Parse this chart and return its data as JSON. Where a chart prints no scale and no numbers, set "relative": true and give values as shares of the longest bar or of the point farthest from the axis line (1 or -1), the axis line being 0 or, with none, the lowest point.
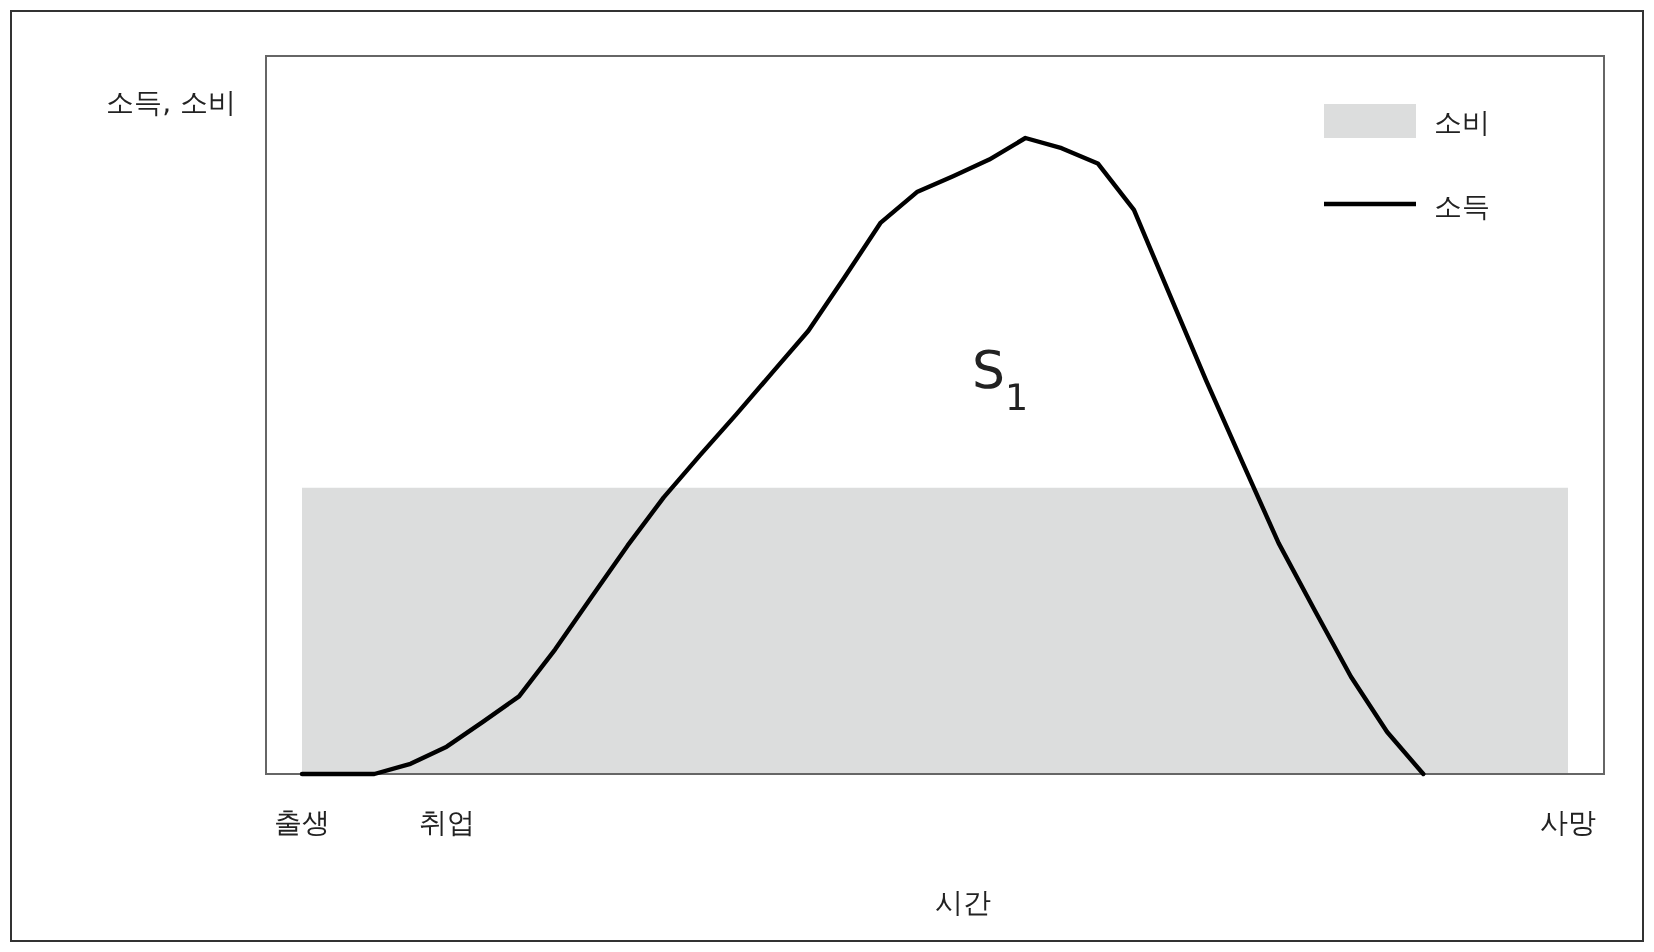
{
  "chart_data": {
    "type": "line",
    "relative": true,
    "xlabel": "시간",
    "ylabel": "소득, 소비",
    "categories": [
      "출생",
      null,
      null,
      null,
      "취업",
      null,
      null,
      null,
      null,
      null,
      null,
      null,
      null,
      null,
      null,
      null,
      null,
      null,
      null,
      null,
      null,
      null,
      null,
      null,
      null,
      null,
      null,
      null,
      null,
      null,
      null,
      null,
      null,
      null,
      null,
      "사망"
    ],
    "tick_labels": "x",
    "legend": "top right",
    "line_style": "solid",
    "marker": "none",
    "series": [
      {
        "name": "소비",
        "type": "area",
        "color": "#dcdddd",
        "values": [
          0.45,
          0.45,
          0.45,
          0.45,
          0.45,
          0.45,
          0.45,
          0.45,
          0.45,
          0.45,
          0.45,
          0.45,
          0.45,
          0.45,
          0.45,
          0.45,
          0.45,
          0.45,
          0.45,
          0.45,
          0.45,
          0.45,
          0.45,
          0.45,
          0.45,
          0.45,
          0.45,
          0.45,
          0.45,
          0.45,
          0.45,
          0.45,
          0.45,
          0.45,
          0.45,
          0.45
        ]
      },
      {
        "name": "소득",
        "type": "line",
        "color": "#000000",
        "values": [
          0,
          0,
          0,
          0.016,
          0.043,
          0.082,
          0.122,
          0.196,
          0.278,
          0.359,
          0.435,
          0.501,
          0.565,
          0.631,
          0.697,
          0.781,
          0.867,
          0.915,
          0.94,
          0.966,
          1,
          0.984,
          0.96,
          0.887,
          0.752,
          0.618,
          0.49,
          0.363,
          0.257,
          0.153,
          0.066,
          0,
          null,
          null,
          null,
          null
        ]
      }
    ],
    "annotations": [
      "S$_{1}$"
    ]
  }
}
